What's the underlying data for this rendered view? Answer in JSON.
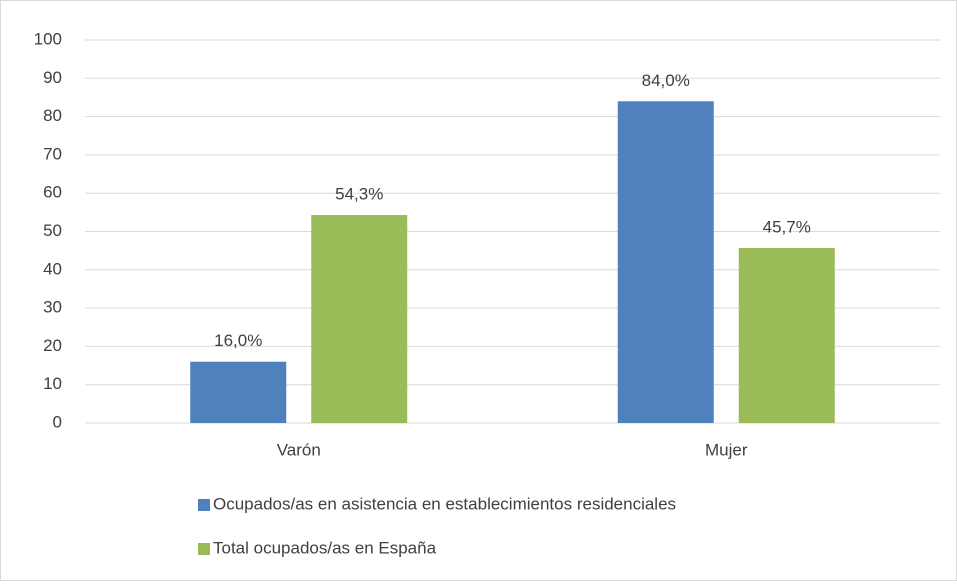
{
  "chart_data": {
    "type": "bar",
    "categories": [
      "Varón",
      "Mujer"
    ],
    "series": [
      {
        "name": "Ocupados/as en asistencia en establecimientos residenciales",
        "color": "#4f81bd",
        "values": [
          16.0,
          84.0
        ],
        "value_labels": [
          "16,0%",
          "84,0%"
        ]
      },
      {
        "name": "Total ocupados/as en España",
        "color": "#9bbb59",
        "values": [
          54.3,
          45.7
        ],
        "value_labels": [
          "54,3%",
          "45,7%"
        ]
      }
    ],
    "ylim": [
      0,
      100
    ],
    "yticks": [
      0,
      10,
      20,
      30,
      40,
      50,
      60,
      70,
      80,
      90,
      100
    ],
    "grid": true,
    "legend": "bottom"
  }
}
